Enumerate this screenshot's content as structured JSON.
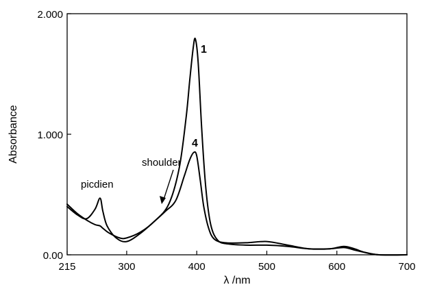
{
  "chart_data": {
    "type": "line",
    "xlabel": "λ /nm",
    "ylabel": "Absorbance",
    "xlim": [
      215,
      700
    ],
    "ylim": [
      0,
      2.0
    ],
    "x_ticks": [
      215,
      300,
      400,
      500,
      600,
      700
    ],
    "y_ticks": [
      0,
      1.0,
      2.0
    ],
    "x_tick_labels": [
      "215",
      "300",
      "400",
      "500",
      "600",
      "700"
    ],
    "y_tick_labels": [
      "0.00",
      "1.000",
      "2.000"
    ],
    "grid": false,
    "legend": "none",
    "series": [
      {
        "name": "1",
        "x": [
          215,
          230,
          245,
          255,
          262,
          266,
          275,
          290,
          300,
          320,
          340,
          360,
          375,
          385,
          390,
          395,
          398,
          402,
          407,
          413,
          420,
          430,
          445,
          470,
          500,
          530,
          560,
          590,
          610,
          625,
          640,
          660,
          700
        ],
        "values": [
          0.42,
          0.34,
          0.28,
          0.25,
          0.24,
          0.22,
          0.18,
          0.14,
          0.14,
          0.19,
          0.28,
          0.42,
          0.72,
          1.15,
          1.45,
          1.72,
          1.79,
          1.6,
          1.05,
          0.55,
          0.25,
          0.12,
          0.09,
          0.08,
          0.08,
          0.07,
          0.05,
          0.05,
          0.06,
          0.04,
          0.02,
          0.0,
          0.0
        ]
      },
      {
        "name": "4",
        "x": [
          215,
          230,
          243,
          255,
          262,
          266,
          272,
          285,
          300,
          320,
          340,
          355,
          370,
          382,
          390,
          396,
          400,
          405,
          410,
          417,
          425,
          440,
          470,
          500,
          530,
          560,
          590,
          610,
          625,
          640,
          660,
          700
        ],
        "values": [
          0.4,
          0.33,
          0.3,
          0.38,
          0.47,
          0.36,
          0.24,
          0.14,
          0.11,
          0.18,
          0.28,
          0.36,
          0.45,
          0.65,
          0.79,
          0.85,
          0.82,
          0.62,
          0.4,
          0.22,
          0.13,
          0.1,
          0.1,
          0.11,
          0.08,
          0.05,
          0.05,
          0.07,
          0.05,
          0.02,
          0.0,
          0.0
        ]
      }
    ],
    "annotations": {
      "picdien": "picdien",
      "shoulder": "shoulder",
      "series_1_label": "1",
      "series_4_label": "4"
    }
  }
}
